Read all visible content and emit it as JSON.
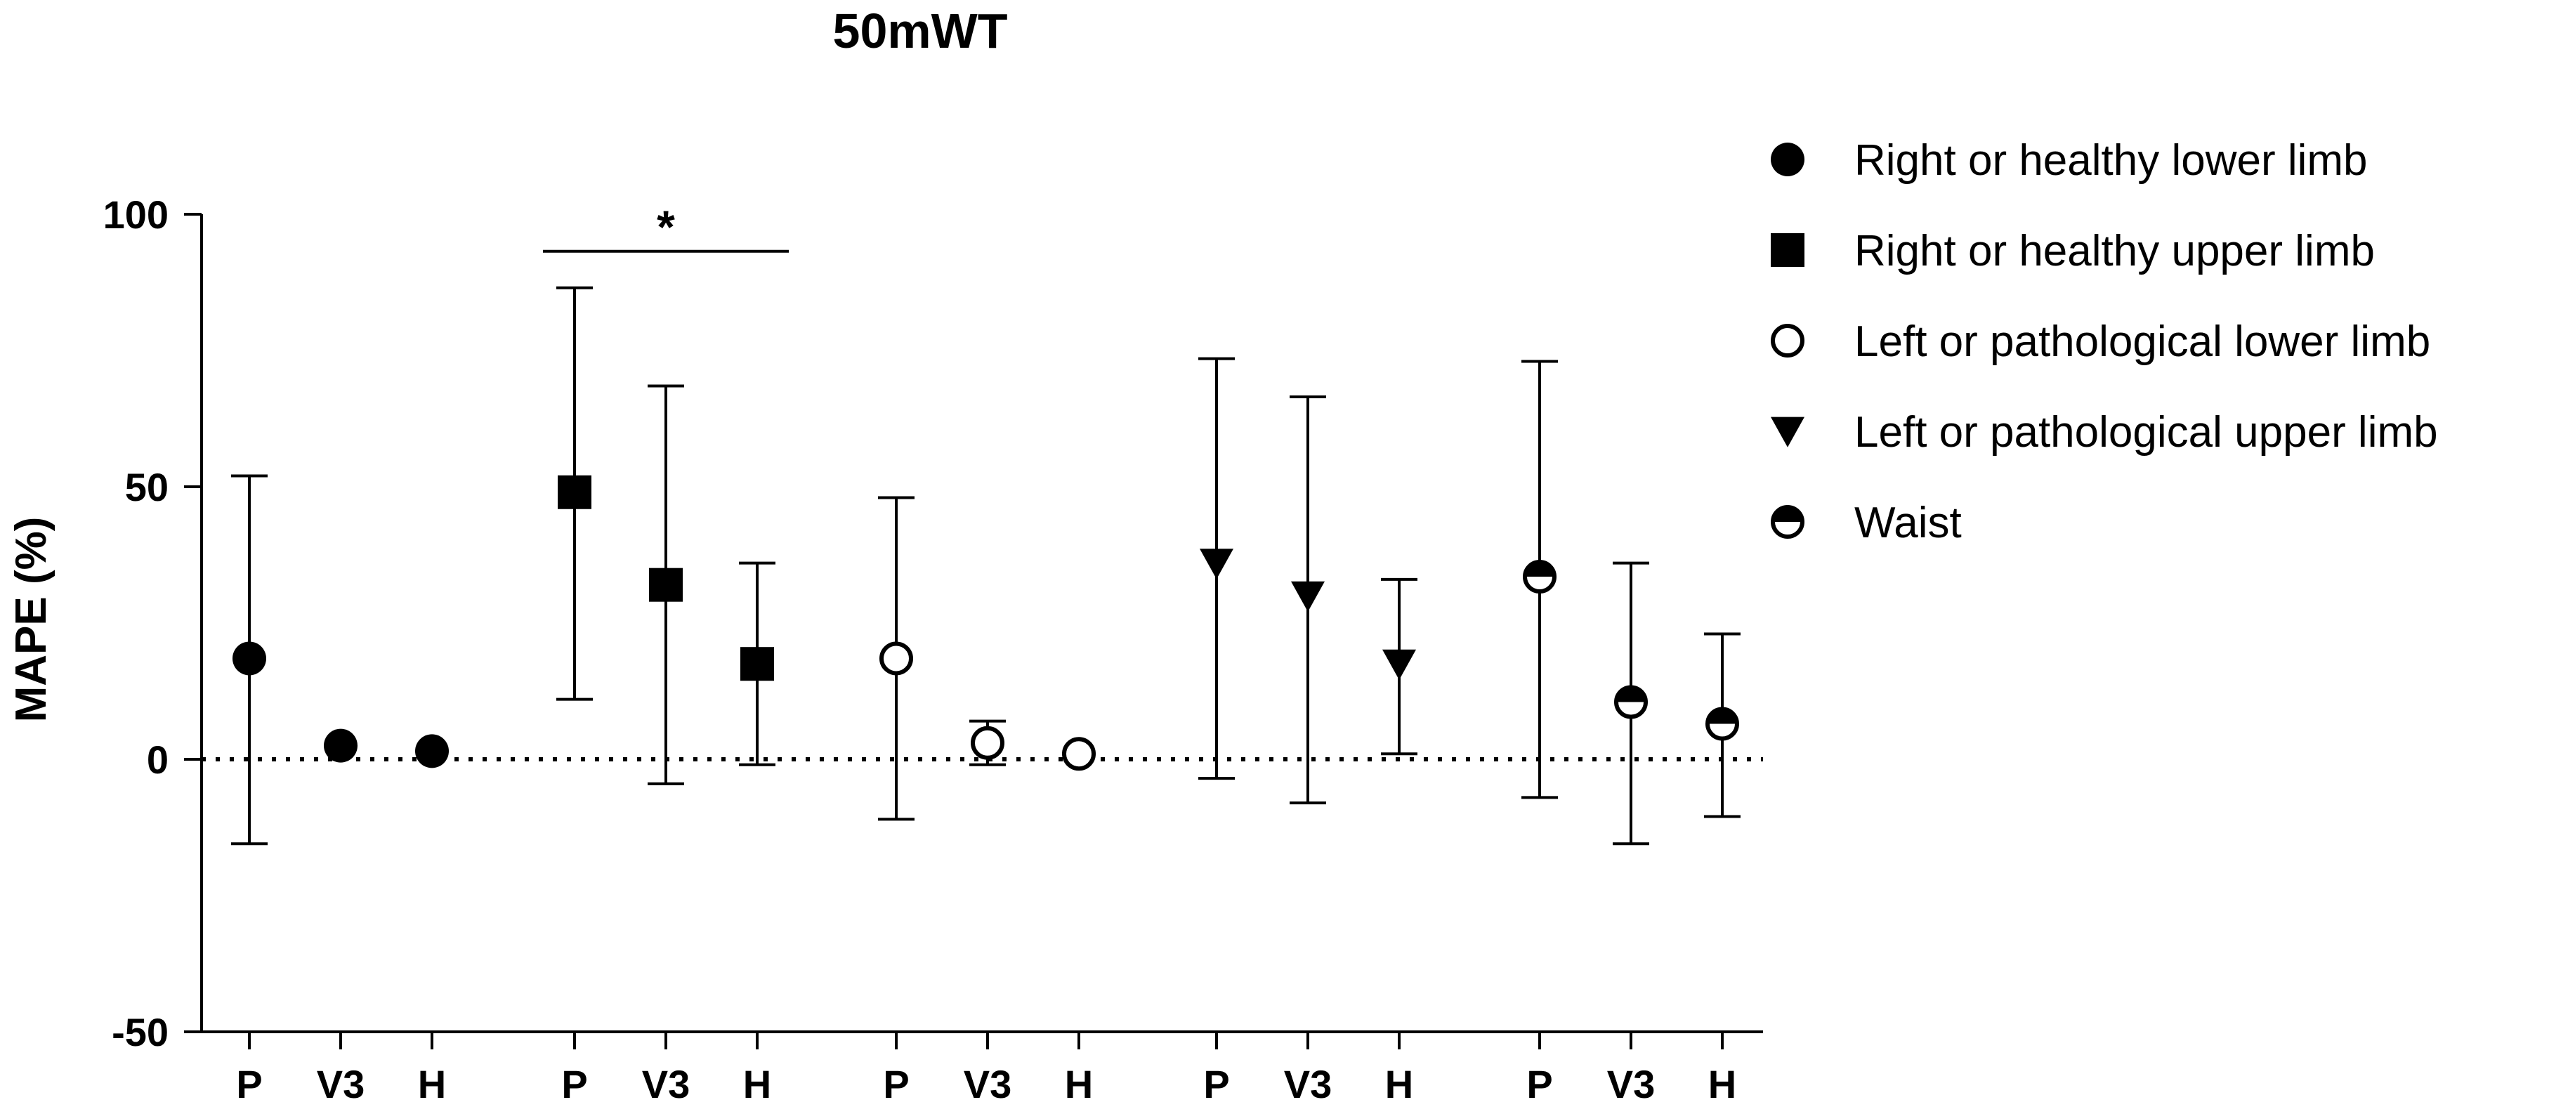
{
  "chart_data": {
    "type": "scatter",
    "title": "50mWT",
    "xlabel": "",
    "ylabel": "MAPE (%)",
    "ylim": [
      -50,
      100
    ],
    "yticks": [
      -50,
      0,
      50,
      100
    ],
    "reference_line": {
      "y": 0,
      "style": "dotted"
    },
    "grid": false,
    "legend_position": "right",
    "categories": [
      "P",
      "V3",
      "H",
      "P",
      "V3",
      "H",
      "P",
      "V3",
      "H",
      "P",
      "V3",
      "H",
      "P",
      "V3",
      "H"
    ],
    "series": [
      {
        "name": "Right or healthy lower limb",
        "marker": "filled-circle",
        "x_labels": [
          "P",
          "V3",
          "H"
        ],
        "mean": [
          18.5,
          2.5,
          1.5
        ],
        "lower": [
          -15.5,
          2.5,
          1.5
        ],
        "upper": [
          52,
          2.5,
          1.5
        ]
      },
      {
        "name": "Right or healthy upper limb",
        "marker": "filled-square",
        "x_labels": [
          "P",
          "V3",
          "H"
        ],
        "mean": [
          49,
          32,
          17.5
        ],
        "lower": [
          11,
          -4.5,
          -1
        ],
        "upper": [
          86.5,
          68.5,
          36
        ]
      },
      {
        "name": "Left or pathological lower limb",
        "marker": "open-circle",
        "x_labels": [
          "P",
          "V3",
          "H"
        ],
        "mean": [
          18.5,
          3,
          1
        ],
        "lower": [
          -11,
          -1,
          1
        ],
        "upper": [
          48,
          7,
          1
        ]
      },
      {
        "name": "Left or pathological upper limb",
        "marker": "filled-triangle-down",
        "x_labels": [
          "P",
          "V3",
          "H"
        ],
        "mean": [
          36,
          30,
          17.5
        ],
        "lower": [
          -3.5,
          -8,
          1
        ],
        "upper": [
          73.5,
          66.5,
          33
        ]
      },
      {
        "name": "Waist",
        "marker": "half-filled-circle",
        "x_labels": [
          "P",
          "V3",
          "H"
        ],
        "mean": [
          33.5,
          10.5,
          6.5
        ],
        "lower": [
          -7,
          -15.5,
          -10.5
        ],
        "upper": [
          73,
          36,
          23
        ]
      }
    ],
    "annotations": [
      {
        "text": "*",
        "from_series": 1,
        "from_index": 0,
        "to_index": 2
      }
    ]
  }
}
